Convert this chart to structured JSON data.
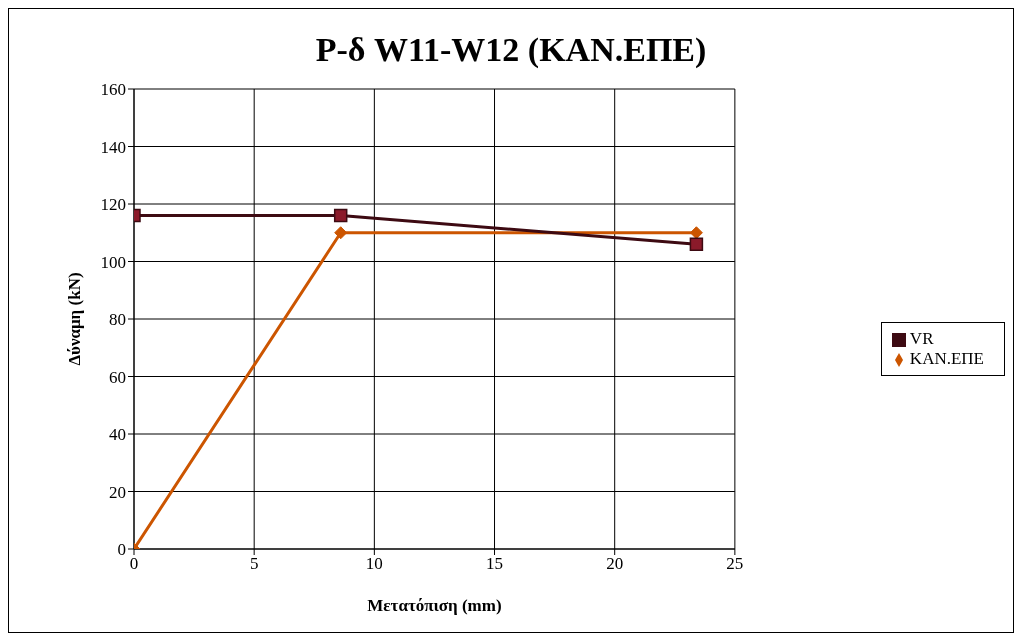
{
  "chart_data": {
    "type": "line",
    "title": "P-δ W11-W12 (ΚΑΝ.ΕΠΕ)",
    "xlabel": "Μετατόπιση (mm)",
    "ylabel": "Δύναμη (kN)",
    "series": [
      {
        "name": "ΚΑΝ.ΕΠΕ",
        "color": "#cc5500",
        "marker": "diamond",
        "x": [
          0,
          8.6,
          23.4
        ],
        "values": [
          0,
          110,
          110
        ]
      },
      {
        "name": "VR",
        "color": "#3d0a12",
        "marker": "square",
        "x": [
          0,
          8.6,
          23.4
        ],
        "values": [
          116,
          116,
          106
        ]
      }
    ],
    "xlim": [
      0,
      25
    ],
    "xticks": [
      0,
      5,
      10,
      15,
      20,
      25
    ],
    "ylim": [
      0,
      160
    ],
    "yticks": [
      0,
      20,
      40,
      60,
      80,
      100,
      120,
      140,
      160
    ],
    "grid": true,
    "legend": "right",
    "line_style": "solid"
  }
}
